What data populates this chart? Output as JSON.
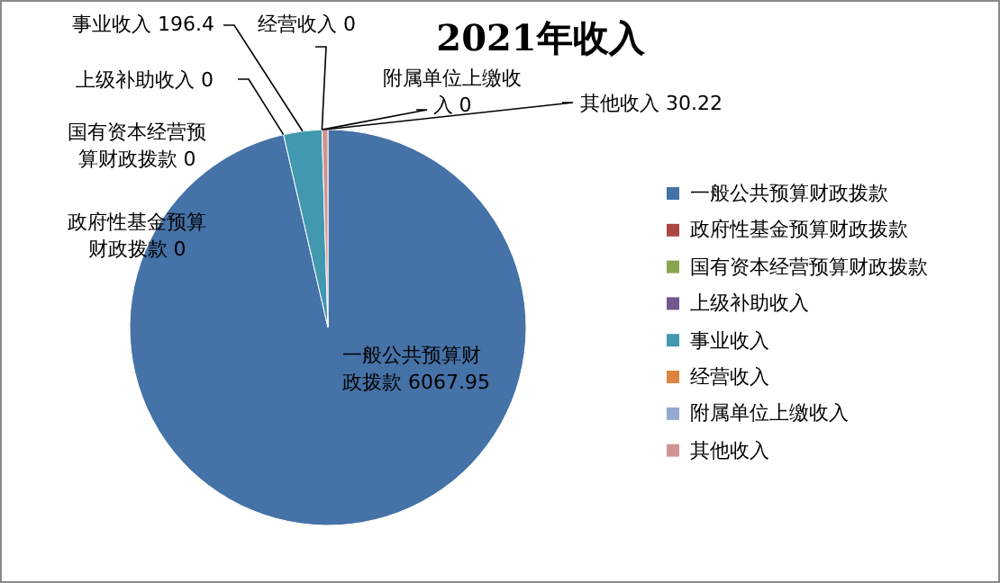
{
  "chart_data": {
    "type": "pie",
    "title": "2021年收入",
    "categories": [
      "一般公共预算财政拨款",
      "政府性基金预算财政拨款",
      "国有资本经营预算财政拨款",
      "上级补助收入",
      "事业收入",
      "经营收入",
      "附属单位上缴收入",
      "其他收入"
    ],
    "values": [
      6067.95,
      0,
      0,
      0,
      196.4,
      0,
      0,
      30.22
    ],
    "colors": [
      "#4572a7",
      "#aa4643",
      "#89a54e",
      "#71588f",
      "#4198af",
      "#db843d",
      "#93a9cf",
      "#d19392"
    ],
    "value_labels": [
      "6067.95",
      "0",
      "0",
      "0",
      "196.4",
      "0",
      "0",
      "30.22"
    ],
    "legend": "right"
  }
}
